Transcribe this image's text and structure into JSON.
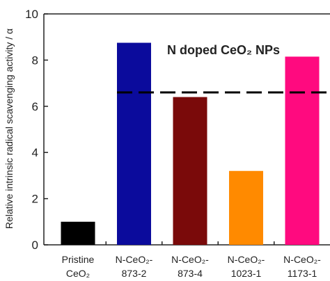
{
  "chart_data": {
    "type": "bar",
    "y_label": "Relative intrinsic radical scavenging activity / α",
    "annotation": "N doped CeO₂ NPs",
    "categories": [
      [
        "Pristine",
        "CeO₂"
      ],
      [
        "N-CeO₂-",
        "873-2"
      ],
      [
        "N-CeO₂-",
        "873-4"
      ],
      [
        "N-CeO₂-",
        "1023-1"
      ],
      [
        "N-CeO₂-",
        "1173-1"
      ]
    ],
    "values": [
      1.0,
      8.75,
      6.4,
      3.2,
      8.15
    ],
    "colors": [
      "#000000",
      "#0b0b9c",
      "#7a0a0a",
      "#ff8a00",
      "#ff0a7f"
    ],
    "reference_line": 6.6,
    "ylim": [
      0,
      10
    ],
    "yticks": [
      0,
      2,
      4,
      6,
      8,
      10
    ]
  }
}
